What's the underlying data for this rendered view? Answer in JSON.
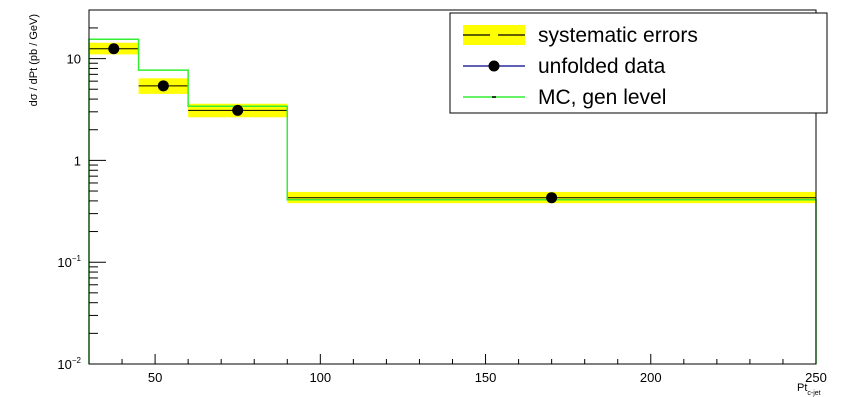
{
  "chart_data": {
    "type": "line",
    "title": "",
    "xlabel": "Pt",
    "xlabel_sub": "c-jet",
    "ylabel": "dσ / dPt (pb / GeV)",
    "xlim": [
      30,
      250
    ],
    "ylim": [
      0.01,
      30
    ],
    "yscale": "log",
    "grid": false,
    "legend_position": "top-right",
    "x_ticks": [
      {
        "value": 50,
        "label": "50"
      },
      {
        "value": 100,
        "label": "100"
      },
      {
        "value": 150,
        "label": "150"
      },
      {
        "value": 200,
        "label": "200"
      },
      {
        "value": 250,
        "label": "250"
      }
    ],
    "y_ticks": [
      {
        "value": 0.01,
        "base": "10",
        "exp": "−2"
      },
      {
        "value": 0.1,
        "base": "10",
        "exp": "−1"
      },
      {
        "value": 1,
        "base": "1",
        "exp": ""
      },
      {
        "value": 10,
        "base": "10",
        "exp": ""
      }
    ],
    "bins": [
      {
        "low": 30,
        "high": 45,
        "center": 37.5
      },
      {
        "low": 45,
        "high": 60,
        "center": 52.5
      },
      {
        "low": 60,
        "high": 90,
        "center": 75
      },
      {
        "low": 90,
        "high": 250,
        "center": 170
      }
    ],
    "series": [
      {
        "name": "systematic errors",
        "role": "band",
        "values": [
          12.5,
          5.4,
          3.1,
          0.43
        ],
        "low": [
          11.0,
          4.5,
          2.65,
          0.38
        ],
        "high": [
          14.3,
          6.4,
          3.6,
          0.49
        ]
      },
      {
        "name": "unfolded data",
        "role": "points",
        "values": [
          12.5,
          5.4,
          3.1,
          0.43
        ]
      },
      {
        "name": "MC, gen level",
        "role": "step",
        "values": [
          15.5,
          7.7,
          3.4,
          0.41
        ]
      }
    ],
    "colors": {
      "band": "#ffff00",
      "points": "#000000",
      "marker_line": "#00008b",
      "mc": "#33ee33"
    }
  }
}
